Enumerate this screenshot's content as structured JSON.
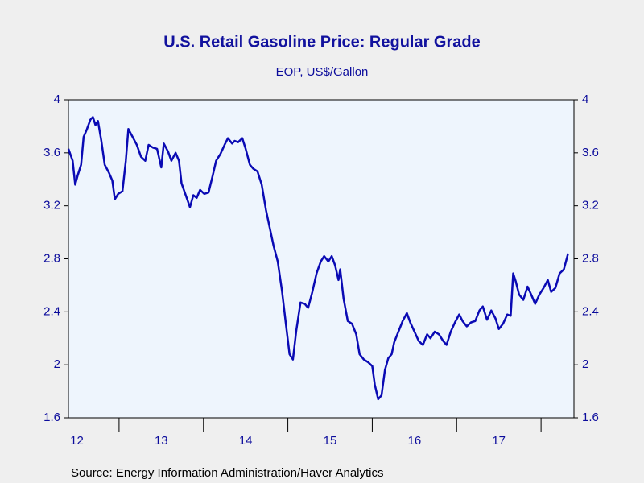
{
  "chart_data": {
    "type": "line",
    "title": "U.S. Retail Gasoline Price: Regular Grade",
    "subtitle": "EOP, US$/Gallon",
    "source": "Source:  Energy Information Administration/Haver Analytics",
    "ylim": [
      1.6,
      4.0
    ],
    "yticks": [
      1.6,
      2.0,
      2.4,
      2.8,
      3.2,
      3.6,
      4.0
    ],
    "y2lim": [
      1.6,
      4.0
    ],
    "y2ticks": [
      1.6,
      2.0,
      2.4,
      2.8,
      3.2,
      3.6,
      4.0
    ],
    "xlim": [
      2012.4,
      2018.39
    ],
    "xtick_marks": [
      2013,
      2014,
      2015,
      2016,
      2017,
      2018
    ],
    "xticks": [
      {
        "value": 2012.5,
        "label": "12"
      },
      {
        "value": 2013.5,
        "label": "13"
      },
      {
        "value": 2014.5,
        "label": "14"
      },
      {
        "value": 2015.5,
        "label": "15"
      },
      {
        "value": 2016.5,
        "label": "16"
      },
      {
        "value": 2017.5,
        "label": "17"
      }
    ],
    "x": [
      2012.4,
      2012.45,
      2012.48,
      2012.51,
      2012.55,
      2012.58,
      2012.62,
      2012.66,
      2012.69,
      2012.72,
      2012.75,
      2012.79,
      2012.83,
      2012.88,
      2012.92,
      2012.95,
      2012.99,
      2013.04,
      2013.08,
      2013.11,
      2013.16,
      2013.21,
      2013.26,
      2013.31,
      2013.35,
      2013.4,
      2013.45,
      2013.5,
      2013.53,
      2013.58,
      2013.62,
      2013.67,
      2013.71,
      2013.74,
      2013.79,
      2013.84,
      2013.88,
      2013.92,
      2013.96,
      2014.01,
      2014.06,
      2014.11,
      2014.15,
      2014.2,
      2014.25,
      2014.29,
      2014.34,
      2014.37,
      2014.41,
      2014.46,
      2014.5,
      2014.55,
      2014.59,
      2014.64,
      2014.69,
      2014.74,
      2014.79,
      2014.83,
      2014.88,
      2014.93,
      2014.98,
      2015.02,
      2015.06,
      2015.1,
      2015.15,
      2015.2,
      2015.24,
      2015.29,
      2015.34,
      2015.39,
      2015.43,
      2015.48,
      2015.52,
      2015.56,
      2015.6,
      2015.62,
      2015.66,
      2015.71,
      2015.76,
      2015.81,
      2015.85,
      2015.9,
      2015.95,
      2016.0,
      2016.03,
      2016.07,
      2016.11,
      2016.15,
      2016.19,
      2016.23,
      2016.26,
      2016.31,
      2016.36,
      2016.41,
      2016.45,
      2016.5,
      2016.55,
      2016.6,
      2016.65,
      2016.69,
      2016.74,
      2016.79,
      2016.84,
      2016.88,
      2016.93,
      2016.98,
      2017.03,
      2017.07,
      2017.12,
      2017.17,
      2017.22,
      2017.27,
      2017.31,
      2017.36,
      2017.41,
      2017.46,
      2017.5,
      2017.55,
      2017.6,
      2017.64,
      2017.67,
      2017.7,
      2017.74,
      2017.79,
      2017.84,
      2017.89,
      2017.93,
      2017.98,
      2018.03,
      2018.08,
      2018.12,
      2018.17,
      2018.22,
      2018.27,
      2018.32
    ],
    "series": [
      {
        "color": "#0a0ab4",
        "values": [
          3.63,
          3.54,
          3.36,
          3.43,
          3.51,
          3.72,
          3.78,
          3.85,
          3.87,
          3.81,
          3.84,
          3.69,
          3.51,
          3.45,
          3.39,
          3.25,
          3.29,
          3.31,
          3.54,
          3.78,
          3.72,
          3.66,
          3.57,
          3.54,
          3.66,
          3.64,
          3.63,
          3.49,
          3.67,
          3.61,
          3.54,
          3.6,
          3.54,
          3.37,
          3.28,
          3.19,
          3.28,
          3.26,
          3.32,
          3.29,
          3.3,
          3.43,
          3.54,
          3.59,
          3.66,
          3.71,
          3.67,
          3.69,
          3.68,
          3.71,
          3.63,
          3.51,
          3.48,
          3.46,
          3.36,
          3.17,
          3.02,
          2.9,
          2.78,
          2.56,
          2.29,
          2.08,
          2.04,
          2.26,
          2.47,
          2.46,
          2.43,
          2.55,
          2.69,
          2.78,
          2.82,
          2.78,
          2.82,
          2.75,
          2.64,
          2.72,
          2.5,
          2.33,
          2.31,
          2.23,
          2.08,
          2.04,
          2.02,
          1.99,
          1.85,
          1.74,
          1.77,
          1.96,
          2.05,
          2.08,
          2.17,
          2.25,
          2.33,
          2.39,
          2.32,
          2.25,
          2.18,
          2.15,
          2.23,
          2.2,
          2.25,
          2.23,
          2.18,
          2.15,
          2.25,
          2.32,
          2.38,
          2.33,
          2.29,
          2.32,
          2.33,
          2.41,
          2.44,
          2.34,
          2.41,
          2.35,
          2.27,
          2.31,
          2.38,
          2.37,
          2.69,
          2.63,
          2.53,
          2.49,
          2.59,
          2.52,
          2.46,
          2.53,
          2.58,
          2.64,
          2.55,
          2.58,
          2.69,
          2.72,
          2.84
        ]
      }
    ]
  }
}
